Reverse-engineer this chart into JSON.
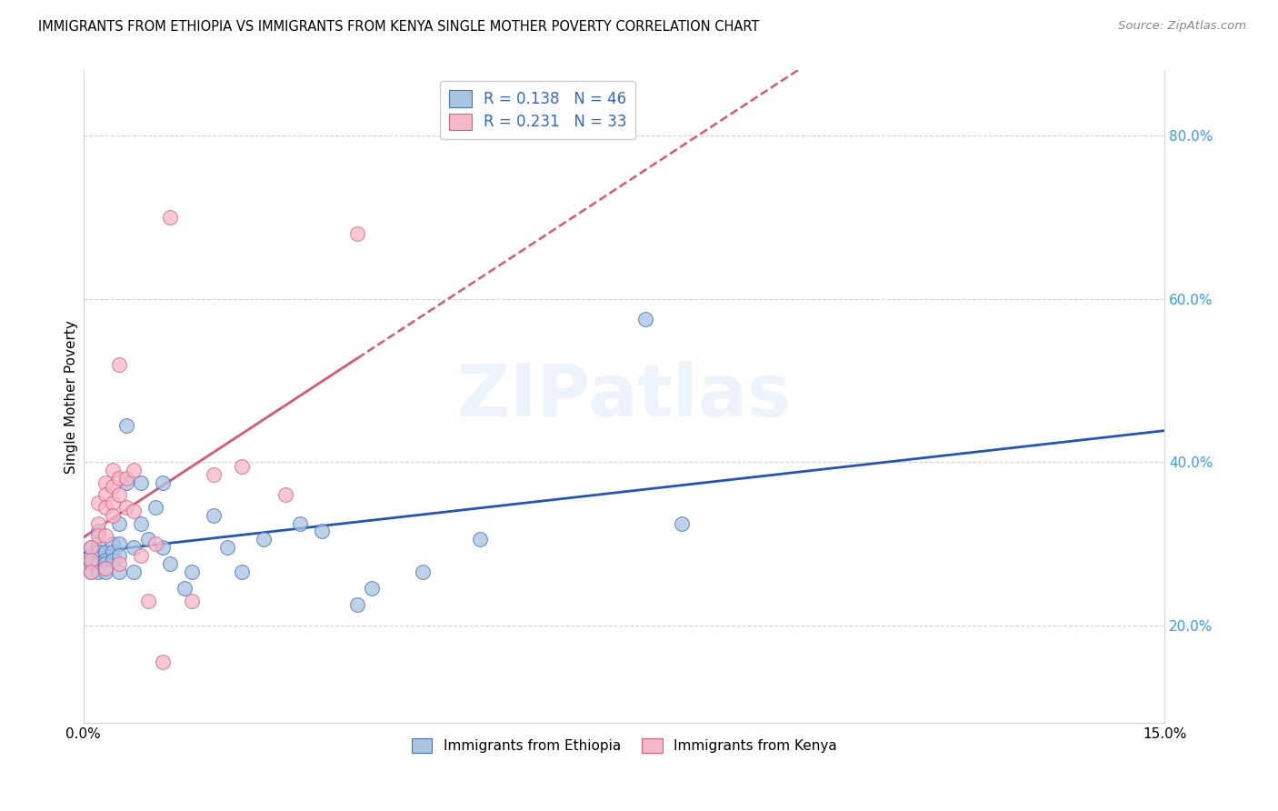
{
  "title": "IMMIGRANTS FROM ETHIOPIA VS IMMIGRANTS FROM KENYA SINGLE MOTHER POVERTY CORRELATION CHART",
  "source": "Source: ZipAtlas.com",
  "ylabel": "Single Mother Poverty",
  "xlim": [
    0.0,
    0.15
  ],
  "ylim": [
    0.08,
    0.88
  ],
  "xticks": [
    0.0,
    0.03,
    0.06,
    0.09,
    0.12,
    0.15
  ],
  "yticks_right": [
    0.2,
    0.4,
    0.6,
    0.8
  ],
  "ethiopia_color": "#A8C4E0",
  "kenya_color": "#F4B8C8",
  "ethiopia_edge_color": "#4472C4",
  "kenya_edge_color": "#E06080",
  "ethiopia_line_color": "#2255BB",
  "kenya_line_color": "#DD5577",
  "legend_r_ethiopia": "R = 0.138",
  "legend_n_ethiopia": "N = 46",
  "legend_r_kenya": "R = 0.231",
  "legend_n_kenya": "N = 33",
  "watermark": "ZIPatlas",
  "ethiopia_x": [
    0.001,
    0.001,
    0.001,
    0.001,
    0.002,
    0.002,
    0.002,
    0.002,
    0.002,
    0.003,
    0.003,
    0.003,
    0.003,
    0.003,
    0.004,
    0.004,
    0.004,
    0.005,
    0.005,
    0.005,
    0.005,
    0.006,
    0.006,
    0.007,
    0.007,
    0.008,
    0.008,
    0.009,
    0.01,
    0.011,
    0.011,
    0.012,
    0.014,
    0.015,
    0.018,
    0.02,
    0.022,
    0.025,
    0.03,
    0.033,
    0.038,
    0.04,
    0.047,
    0.055,
    0.078,
    0.083
  ],
  "ethiopia_y": [
    0.295,
    0.285,
    0.275,
    0.265,
    0.315,
    0.3,
    0.29,
    0.275,
    0.265,
    0.29,
    0.28,
    0.275,
    0.27,
    0.265,
    0.3,
    0.29,
    0.28,
    0.325,
    0.3,
    0.285,
    0.265,
    0.375,
    0.445,
    0.295,
    0.265,
    0.375,
    0.325,
    0.305,
    0.345,
    0.375,
    0.295,
    0.275,
    0.245,
    0.265,
    0.335,
    0.295,
    0.265,
    0.305,
    0.325,
    0.315,
    0.225,
    0.245,
    0.265,
    0.305,
    0.575,
    0.325
  ],
  "kenya_x": [
    0.001,
    0.001,
    0.001,
    0.002,
    0.002,
    0.002,
    0.003,
    0.003,
    0.003,
    0.003,
    0.003,
    0.004,
    0.004,
    0.004,
    0.004,
    0.005,
    0.005,
    0.005,
    0.005,
    0.006,
    0.006,
    0.007,
    0.007,
    0.008,
    0.009,
    0.01,
    0.011,
    0.012,
    0.015,
    0.018,
    0.022,
    0.028,
    0.038
  ],
  "kenya_y": [
    0.295,
    0.28,
    0.265,
    0.35,
    0.325,
    0.31,
    0.375,
    0.36,
    0.345,
    0.31,
    0.27,
    0.39,
    0.37,
    0.35,
    0.335,
    0.52,
    0.38,
    0.36,
    0.275,
    0.38,
    0.345,
    0.39,
    0.34,
    0.285,
    0.23,
    0.3,
    0.155,
    0.7,
    0.23,
    0.385,
    0.395,
    0.36,
    0.68
  ]
}
